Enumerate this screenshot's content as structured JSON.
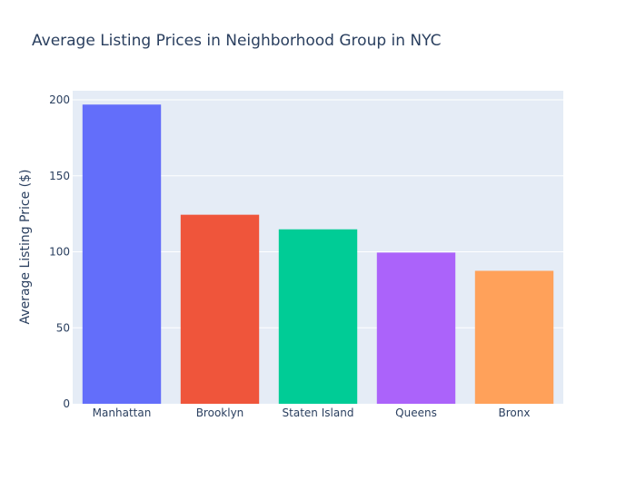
{
  "chart_data": {
    "type": "bar",
    "title": "Average Listing Prices in Neighborhood Group in NYC",
    "xlabel": "",
    "ylabel": "Average Listing Price ($)",
    "categories": [
      "Manhattan",
      "Brooklyn",
      "Staten Island",
      "Queens",
      "Bronx"
    ],
    "values": [
      196.9,
      124.4,
      114.8,
      99.5,
      87.5
    ],
    "colors": [
      "#636efa",
      "#ef553b",
      "#00cc96",
      "#ab63fa",
      "#ffa15a"
    ],
    "ylim": [
      0,
      206
    ],
    "yticks": [
      0,
      50,
      100,
      150,
      200
    ],
    "plot_background": "#e5ecf6",
    "grid": true,
    "legend": false
  }
}
